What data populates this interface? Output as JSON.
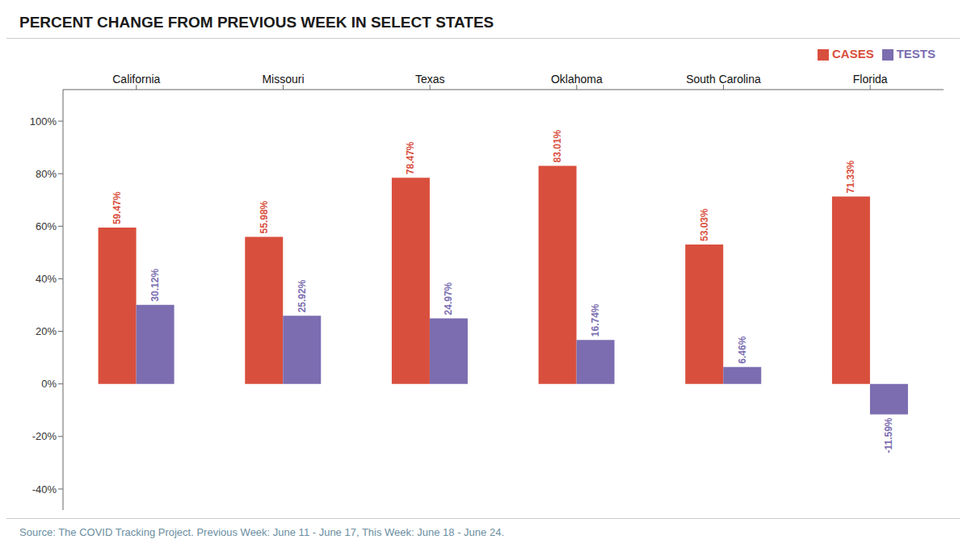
{
  "chart_data": {
    "type": "bar",
    "title": "PERCENT CHANGE FROM PREVIOUS WEEK IN SELECT STATES",
    "categories": [
      "California",
      "Missouri",
      "Texas",
      "Oklahoma",
      "South Carolina",
      "Florida"
    ],
    "series": [
      {
        "name": "CASES",
        "color": "#d94f3d",
        "values": [
          59.47,
          55.98,
          78.47,
          83.01,
          53.03,
          71.33
        ],
        "value_labels": [
          "59.47%",
          "55.98%",
          "78.47%",
          "83.01%",
          "53.03%",
          "71.33%"
        ]
      },
      {
        "name": "TESTS",
        "color": "#7b6db0",
        "values": [
          30.12,
          25.92,
          24.97,
          16.74,
          6.46,
          -11.59
        ],
        "value_labels": [
          "30.12%",
          "25.92%",
          "24.97%",
          "16.74%",
          "6.46%",
          "-11.59%"
        ]
      }
    ],
    "ylim": [
      -48,
      112
    ],
    "yticks": [
      {
        "value": -40,
        "label": "-40%"
      },
      {
        "value": -20,
        "label": "-20%"
      },
      {
        "value": 0,
        "label": "0%"
      },
      {
        "value": 20,
        "label": "20%"
      },
      {
        "value": 40,
        "label": "40%"
      },
      {
        "value": 60,
        "label": "60%"
      },
      {
        "value": 80,
        "label": "80%"
      },
      {
        "value": 100,
        "label": "100%"
      }
    ],
    "grid": false,
    "legend": "upper right",
    "data_labels": true,
    "annotations": [
      "Source: The COVID Tracking Project.  Previous Week: June 11 - June 17, This Week: June 18 - June 24."
    ]
  }
}
